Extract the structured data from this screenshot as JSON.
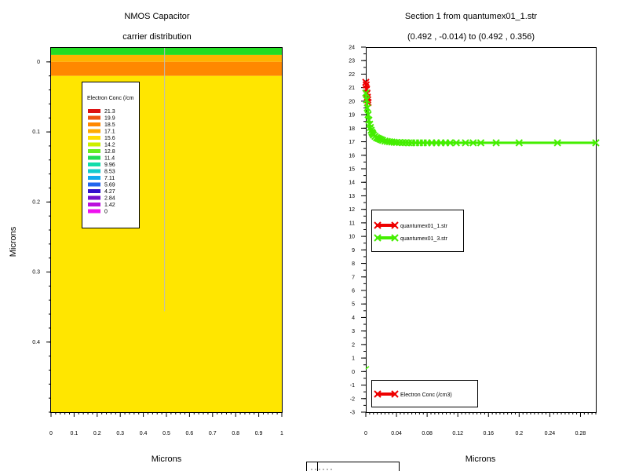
{
  "left_plot": {
    "title": "NMOS Capacitor",
    "subtitle": "carrier distribution",
    "ylabel": "Microns",
    "xlabel": "Microns",
    "legend": {
      "title": "Electron Conc (/cm",
      "entries": [
        {
          "label": "21.3",
          "color": "#dd1111"
        },
        {
          "label": "19.9",
          "color": "#ee5511"
        },
        {
          "label": "18.5",
          "color": "#ff8800"
        },
        {
          "label": "17.1",
          "color": "#ffaa00"
        },
        {
          "label": "15.6",
          "color": "#ffdd00"
        },
        {
          "label": "14.2",
          "color": "#ccee00"
        },
        {
          "label": "12.8",
          "color": "#66ee22"
        },
        {
          "label": "11.4",
          "color": "#22dd55"
        },
        {
          "label": "9.96",
          "color": "#11ddaa"
        },
        {
          "label": "8.53",
          "color": "#11cccc"
        },
        {
          "label": "7.11",
          "color": "#11aaee"
        },
        {
          "label": "5.69",
          "color": "#2266ee"
        },
        {
          "label": "4.27",
          "color": "#3311cc"
        },
        {
          "label": "2.84",
          "color": "#7711cc"
        },
        {
          "label": "1.42",
          "color": "#bb11dd"
        },
        {
          "label": "0",
          "color": "#ee11ee"
        }
      ]
    }
  },
  "right_plot": {
    "title": "Section 1 from quantumex01_1.str",
    "subtitle": "(0.492 , -0.014) to (0.492 , 0.356)",
    "xlabel": "Microns",
    "legend_files": [
      {
        "label": "quantumex01_1.str",
        "color": "#ee0000"
      },
      {
        "label": "quantumex01_3.str",
        "color": "#44ee00"
      }
    ],
    "legend_quantity": {
      "label": "Electron Conc (/cm3)",
      "color": "#ee0000"
    }
  },
  "colors": {
    "background": "#ffffff",
    "contour_fill": "#ffe600",
    "surface_green": "#22dd22",
    "surface_orange": "#ffb300"
  },
  "chart_data": [
    {
      "type": "heatmap",
      "title": "NMOS Capacitor",
      "subtitle": "carrier distribution",
      "xlabel": "Microns",
      "ylabel": "Microns",
      "xlim": [
        0,
        1
      ],
      "ylim": [
        -0.02,
        0.5
      ],
      "y_inverted": true,
      "xticks": [
        0,
        0.1,
        0.2,
        0.3,
        0.4,
        0.5,
        0.6,
        0.7,
        0.8,
        0.9,
        1
      ],
      "yticks": [
        0,
        0.1,
        0.2,
        0.3,
        0.4
      ],
      "cut_line_x": 0.492,
      "cut_line_y_end": 0.356,
      "bands": [
        {
          "y0": -0.02,
          "y1": -0.01,
          "level": "11.4"
        },
        {
          "y0": -0.01,
          "y1": 0.0,
          "level": "17.1"
        },
        {
          "y0": 0.0,
          "y1": 0.02,
          "level": "18.5"
        },
        {
          "y0": 0.02,
          "y1": 0.5,
          "level": "15.6"
        }
      ],
      "legend_placement": "top-left inset"
    },
    {
      "type": "line",
      "title": "Section 1 from quantumex01_1.str",
      "subtitle": "(0.492 , -0.014) to (0.492 , 0.356)",
      "xlabel": "Microns",
      "xlim": [
        0,
        0.3
      ],
      "ylim": [
        -3,
        24
      ],
      "xticks": [
        0,
        0.04,
        0.08,
        0.12,
        0.16,
        0.2,
        0.24,
        0.28
      ],
      "yticks": [
        -3,
        -2,
        -1,
        0,
        1,
        2,
        3,
        4,
        5,
        6,
        7,
        8,
        9,
        10,
        11,
        12,
        13,
        14,
        15,
        16,
        17,
        18,
        19,
        20,
        21,
        22,
        23,
        24
      ],
      "series": [
        {
          "name": "quantumex01_1.str",
          "color": "#ee0000",
          "x": [
            0.0,
            0.0005,
            0.001,
            0.0015,
            0.002,
            0.0025,
            0.003
          ],
          "y": [
            21.4,
            21.2,
            20.9,
            20.6,
            20.3,
            20.1,
            19.9
          ]
        },
        {
          "name": "quantumex01_3.str",
          "color": "#44ee00",
          "x": [
            0.0,
            0.001,
            0.002,
            0.003,
            0.004,
            0.005,
            0.006,
            0.007,
            0.008,
            0.009,
            0.01,
            0.012,
            0.014,
            0.016,
            0.018,
            0.02,
            0.022,
            0.025,
            0.028,
            0.031,
            0.034,
            0.037,
            0.04,
            0.044,
            0.048,
            0.052,
            0.056,
            0.06,
            0.065,
            0.07,
            0.075,
            0.08,
            0.086,
            0.092,
            0.098,
            0.104,
            0.11,
            0.118,
            0.13,
            0.14,
            0.15,
            0.17,
            0.2,
            0.25,
            0.3
          ],
          "y": [
            20.6,
            20.1,
            19.5,
            19.0,
            18.6,
            18.3,
            18.05,
            17.85,
            17.7,
            17.6,
            17.5,
            17.4,
            17.3,
            17.25,
            17.2,
            17.15,
            17.1,
            17.05,
            17.02,
            17.0,
            16.98,
            16.96,
            16.95,
            16.94,
            16.93,
            16.93,
            16.92,
            16.92,
            16.92,
            16.92,
            16.92,
            16.92,
            16.92,
            16.92,
            16.92,
            16.92,
            16.92,
            16.92,
            16.92,
            16.92,
            16.92,
            16.92,
            16.92,
            16.92,
            16.92
          ]
        }
      ],
      "legend_placement": "center-left inset"
    }
  ]
}
